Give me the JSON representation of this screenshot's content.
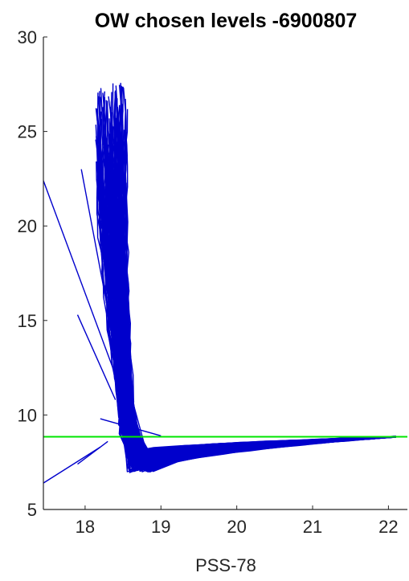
{
  "chart_data": {
    "type": "line",
    "title": "OW chosen levels -6900807",
    "xlabel": "PSS-78",
    "ylabel": "",
    "xlim": [
      17.45,
      22.25
    ],
    "ylim": [
      5,
      30
    ],
    "xticks": [
      18,
      19,
      20,
      21,
      22
    ],
    "yticks": [
      5,
      10,
      15,
      20,
      25,
      30
    ],
    "grid": false,
    "reference_line": {
      "y": 8.85,
      "color": "#00e600"
    },
    "series_color": "#0000cc",
    "profile_bundle": {
      "description_of_shape": "many temperature-salinity profiles: near-vertical spikes from ~26 down to ~9 at salinity 18.1-18.6, converging into a tail toward 22.1 near 8.8",
      "surface_temp_range": [
        21.5,
        27.6
      ],
      "surface_sal_range": [
        17.9,
        18.55
      ],
      "min_temp": 6.95,
      "min_temp_sal": 18.7,
      "deep_sal": 22.1,
      "deep_temp": 8.85,
      "count": 160
    },
    "outlier_lines": [
      {
        "points": [
          [
            17.45,
            22.4
          ],
          [
            18.55,
            10.5
          ]
        ]
      },
      {
        "points": [
          [
            17.45,
            6.4
          ],
          [
            18.2,
            8.3
          ]
        ]
      },
      {
        "points": [
          [
            17.9,
            15.3
          ],
          [
            18.4,
            10.8
          ]
        ]
      },
      {
        "points": [
          [
            17.95,
            23.0
          ],
          [
            18.35,
            14.5
          ]
        ]
      },
      {
        "points": [
          [
            17.9,
            7.4
          ],
          [
            18.3,
            8.6
          ]
        ]
      },
      {
        "points": [
          [
            18.2,
            9.8
          ],
          [
            19.0,
            8.9
          ]
        ]
      }
    ]
  },
  "colors": {
    "axes": "#262626",
    "data": "#0000cc",
    "reference": "#00e600"
  }
}
